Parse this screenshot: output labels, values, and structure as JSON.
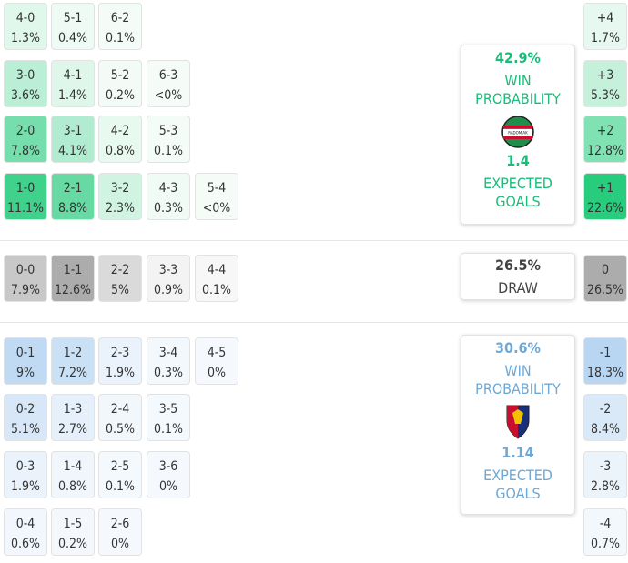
{
  "home": {
    "win_pct": "42.9%",
    "win_label_1": "WIN",
    "win_label_2": "PROBABILITY",
    "xg": "1.4",
    "xg_label_1": "EXPECTED",
    "xg_label_2": "GOALS",
    "crest_text": "RADOMIAK",
    "color": "#1bbc7a"
  },
  "draw": {
    "pct": "26.5%",
    "label": "DRAW"
  },
  "away": {
    "win_pct": "30.6%",
    "win_label_1": "WIN",
    "win_label_2": "PROBABILITY",
    "xg": "1.14",
    "xg_label_1": "EXPECTED",
    "xg_label_2": "GOALS",
    "color": "#6da8d6"
  },
  "home_rows": [
    [
      {
        "score": "4-0",
        "pct": "1.3%"
      },
      {
        "score": "5-1",
        "pct": "0.4%"
      },
      {
        "score": "6-2",
        "pct": "0.1%"
      }
    ],
    [
      {
        "score": "3-0",
        "pct": "3.6%"
      },
      {
        "score": "4-1",
        "pct": "1.4%"
      },
      {
        "score": "5-2",
        "pct": "0.2%"
      },
      {
        "score": "6-3",
        "pct": "<0%"
      }
    ],
    [
      {
        "score": "2-0",
        "pct": "7.8%"
      },
      {
        "score": "3-1",
        "pct": "4.1%"
      },
      {
        "score": "4-2",
        "pct": "0.8%"
      },
      {
        "score": "5-3",
        "pct": "0.1%"
      }
    ],
    [
      {
        "score": "1-0",
        "pct": "11.1%"
      },
      {
        "score": "2-1",
        "pct": "8.8%"
      },
      {
        "score": "3-2",
        "pct": "2.3%"
      },
      {
        "score": "4-3",
        "pct": "0.3%"
      },
      {
        "score": "5-4",
        "pct": "<0%"
      }
    ]
  ],
  "draw_row": [
    {
      "score": "0-0",
      "pct": "7.9%"
    },
    {
      "score": "1-1",
      "pct": "12.6%"
    },
    {
      "score": "2-2",
      "pct": "5%"
    },
    {
      "score": "3-3",
      "pct": "0.9%"
    },
    {
      "score": "4-4",
      "pct": "0.1%"
    }
  ],
  "away_rows": [
    [
      {
        "score": "0-1",
        "pct": "9%"
      },
      {
        "score": "1-2",
        "pct": "7.2%"
      },
      {
        "score": "2-3",
        "pct": "1.9%"
      },
      {
        "score": "3-4",
        "pct": "0.3%"
      },
      {
        "score": "4-5",
        "pct": "0%"
      }
    ],
    [
      {
        "score": "0-2",
        "pct": "5.1%"
      },
      {
        "score": "1-3",
        "pct": "2.7%"
      },
      {
        "score": "2-4",
        "pct": "0.5%"
      },
      {
        "score": "3-5",
        "pct": "0.1%"
      }
    ],
    [
      {
        "score": "0-3",
        "pct": "1.9%"
      },
      {
        "score": "1-4",
        "pct": "0.8%"
      },
      {
        "score": "2-5",
        "pct": "0.1%"
      },
      {
        "score": "3-6",
        "pct": "0%"
      }
    ],
    [
      {
        "score": "0-4",
        "pct": "0.6%"
      },
      {
        "score": "1-5",
        "pct": "0.2%"
      },
      {
        "score": "2-6",
        "pct": "0%"
      }
    ]
  ],
  "margins": [
    {
      "label": "+4",
      "pct": "1.7%"
    },
    {
      "label": "+3",
      "pct": "5.3%"
    },
    {
      "label": "+2",
      "pct": "12.8%"
    },
    {
      "label": "+1",
      "pct": "22.6%"
    },
    {
      "label": "0",
      "pct": "26.5%"
    },
    {
      "label": "-1",
      "pct": "18.3%"
    },
    {
      "label": "-2",
      "pct": "8.4%"
    },
    {
      "label": "-3",
      "pct": "2.8%"
    },
    {
      "label": "-4",
      "pct": "0.7%"
    }
  ]
}
